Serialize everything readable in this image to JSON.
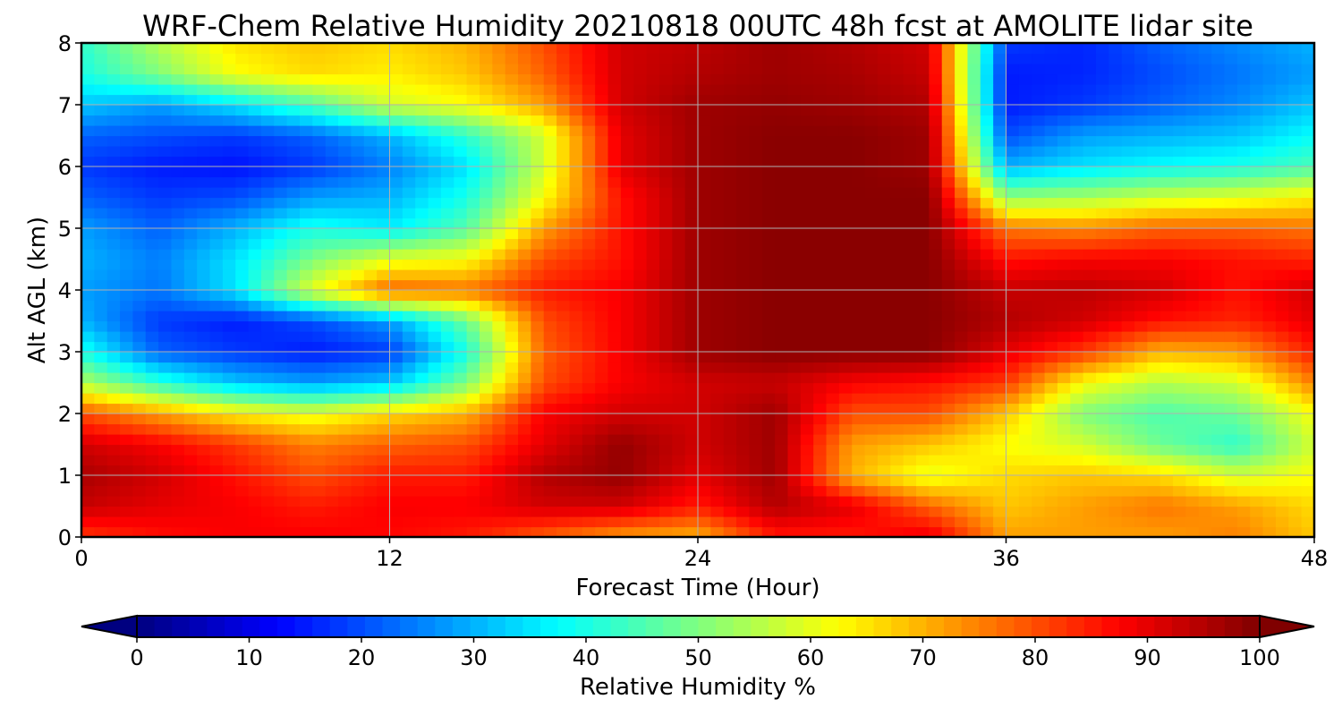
{
  "chart_data": {
    "type": "heatmap",
    "title": "WRF-Chem Relative Humidity 20210818 00UTC 48h fcst at AMOLITE lidar site",
    "xlabel": "Forecast Time (Hour)",
    "ylabel": "Alt AGL (km)",
    "xlim": [
      0,
      48
    ],
    "ylim": [
      0,
      8
    ],
    "xticks": [
      0,
      12,
      24,
      36,
      48
    ],
    "xtick_labels": [
      "0",
      "12",
      "24",
      "36",
      "48"
    ],
    "yticks": [
      0,
      1,
      2,
      3,
      4,
      5,
      6,
      7,
      8
    ],
    "ytick_labels": [
      "0",
      "1",
      "2",
      "3",
      "4",
      "5",
      "6",
      "7",
      "8"
    ],
    "grid": true,
    "colormap": "jet",
    "value_range": [
      0,
      100
    ],
    "colorbar": {
      "label": "Relative Humidity %",
      "orientation": "horizontal",
      "extend": "both",
      "ticks": [
        0,
        10,
        20,
        30,
        40,
        50,
        60,
        70,
        80,
        90,
        100
      ],
      "tick_labels": [
        "0",
        "10",
        "20",
        "30",
        "40",
        "50",
        "60",
        "70",
        "80",
        "90",
        "100"
      ]
    },
    "x": [
      0,
      3,
      6,
      9,
      12,
      15,
      18,
      21,
      24,
      27,
      30,
      33,
      36,
      39,
      42,
      45,
      48
    ],
    "y": [
      0,
      0.5,
      1,
      1.5,
      2,
      2.5,
      3,
      3.5,
      4,
      4.5,
      5,
      5.5,
      6,
      6.5,
      7,
      7.5,
      8
    ],
    "z": [
      [
        82,
        86,
        88,
        88,
        87,
        85,
        78,
        72,
        70,
        85,
        85,
        90,
        72,
        72,
        72,
        75,
        68
      ],
      [
        93,
        90,
        88,
        85,
        88,
        88,
        92,
        92,
        85,
        95,
        90,
        78,
        68,
        72,
        76,
        72,
        66
      ],
      [
        96,
        92,
        86,
        80,
        85,
        85,
        95,
        98,
        90,
        97,
        70,
        60,
        66,
        68,
        66,
        58,
        62
      ],
      [
        92,
        88,
        82,
        75,
        78,
        80,
        90,
        98,
        92,
        97,
        72,
        68,
        62,
        58,
        48,
        42,
        58
      ],
      [
        80,
        72,
        64,
        60,
        66,
        70,
        88,
        92,
        92,
        97,
        80,
        80,
        68,
        50,
        45,
        48,
        62
      ],
      [
        55,
        42,
        32,
        28,
        32,
        50,
        80,
        88,
        92,
        93,
        88,
        86,
        82,
        62,
        55,
        58,
        75
      ],
      [
        40,
        22,
        18,
        15,
        18,
        40,
        78,
        88,
        97,
        99,
        99,
        99,
        90,
        82,
        70,
        72,
        85
      ],
      [
        30,
        18,
        15,
        20,
        28,
        48,
        80,
        88,
        97,
        99,
        99,
        99,
        95,
        92,
        86,
        84,
        90
      ],
      [
        28,
        24,
        35,
        60,
        78,
        76,
        85,
        88,
        97,
        99,
        99,
        99,
        93,
        94,
        92,
        86,
        92
      ],
      [
        30,
        25,
        35,
        50,
        60,
        62,
        80,
        86,
        97,
        99,
        99,
        99,
        86,
        88,
        88,
        86,
        84
      ],
      [
        28,
        22,
        30,
        40,
        36,
        46,
        72,
        86,
        97,
        99,
        99,
        99,
        76,
        74,
        78,
        78,
        76
      ],
      [
        22,
        18,
        20,
        28,
        30,
        40,
        62,
        86,
        97,
        99,
        99,
        99,
        52,
        54,
        58,
        60,
        64
      ],
      [
        18,
        15,
        14,
        18,
        25,
        35,
        58,
        90,
        97,
        99,
        99,
        97,
        30,
        35,
        38,
        40,
        45
      ],
      [
        22,
        20,
        18,
        22,
        30,
        42,
        58,
        90,
        97,
        99,
        99,
        97,
        20,
        28,
        30,
        32,
        38
      ],
      [
        32,
        28,
        35,
        45,
        58,
        62,
        72,
        92,
        97,
        98,
        97,
        95,
        15,
        18,
        22,
        26,
        32
      ],
      [
        40,
        50,
        62,
        66,
        64,
        68,
        78,
        92,
        95,
        97,
        96,
        93,
        15,
        16,
        20,
        24,
        28
      ],
      [
        42,
        55,
        65,
        68,
        66,
        70,
        80,
        92,
        94,
        97,
        95,
        92,
        18,
        16,
        22,
        26,
        30
      ]
    ]
  }
}
